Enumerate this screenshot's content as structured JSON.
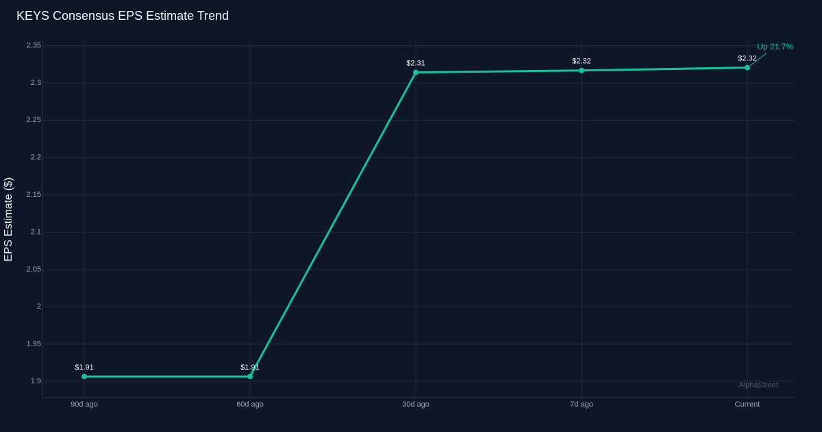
{
  "chart_data": {
    "type": "line",
    "title": "KEYS Consensus EPS Estimate Trend",
    "y_label": "EPS Estimate ($)",
    "categories": [
      "90d ago",
      "60d ago",
      "30d ago",
      "7d ago",
      "Current"
    ],
    "series": [
      {
        "name": "Consensus EPS",
        "color": "#14c39a",
        "values": [
          1.9064,
          1.9064,
          2.3141,
          2.3167,
          2.3205
        ],
        "value_labels": [
          "$1.91",
          "$1.91",
          "$2.31",
          "$2.32",
          "$2.32"
        ]
      }
    ],
    "ylim": [
      1.878,
      2.356
    ],
    "yticks": [
      1.9,
      1.95,
      2,
      2.05,
      2.1,
      2.15,
      2.2,
      2.25,
      2.3,
      2.35
    ],
    "grid": true,
    "annotation": "Up 21.7%",
    "watermark": "AlphaStreet"
  }
}
